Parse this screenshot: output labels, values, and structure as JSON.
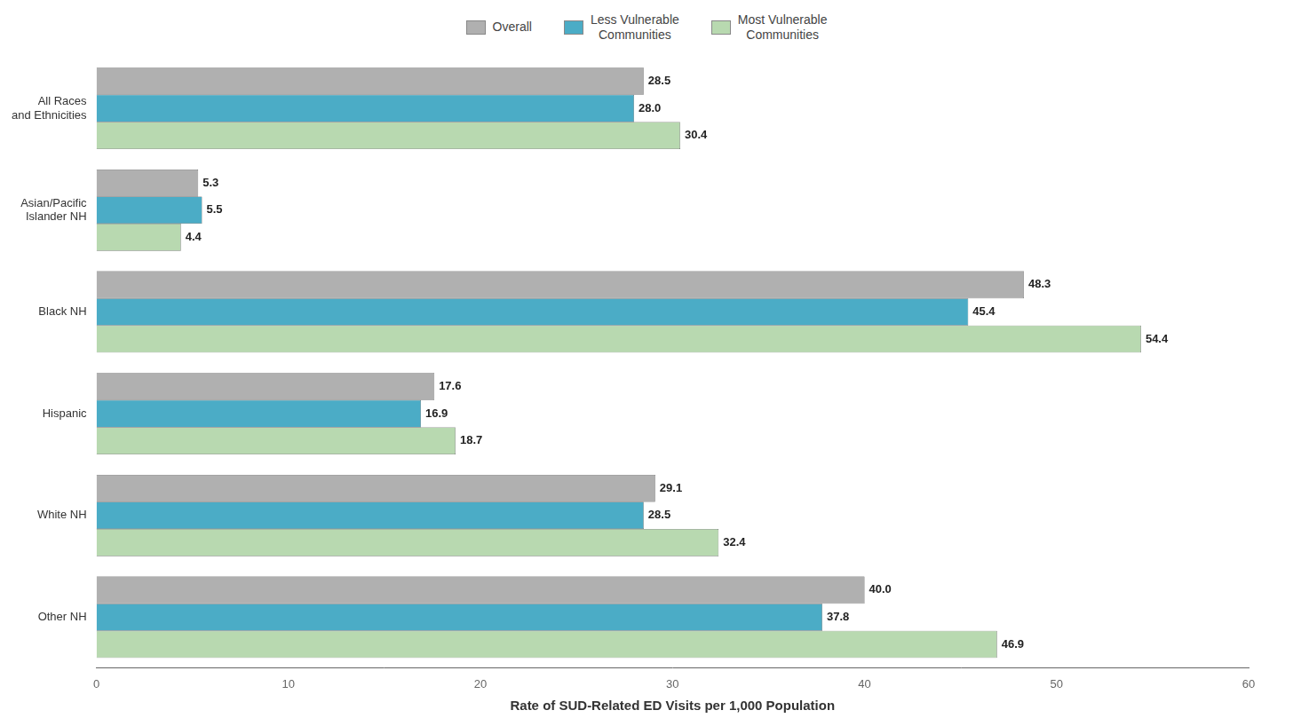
{
  "chart_data": {
    "type": "bar",
    "orientation": "horizontal",
    "categories": [
      "All Races\nand Ethnicities",
      "Asian/Pacific\nIslander NH",
      "Black NH",
      "Hispanic",
      "White NH",
      "Other NH"
    ],
    "series": [
      {
        "name": "Overall",
        "color": "#b0b0b0",
        "values": [
          28.5,
          5.3,
          48.3,
          17.6,
          29.1,
          40.0
        ],
        "value_labels": [
          "28.5",
          "5.3",
          "48.3",
          "17.6",
          "29.1",
          "40.0"
        ]
      },
      {
        "name": "Less Vulnerable\nCommunities",
        "color": "#4bacc6",
        "values": [
          28.0,
          5.5,
          45.4,
          16.9,
          28.5,
          37.8
        ],
        "value_labels": [
          "28.0",
          "5.5",
          "45.4",
          "16.9",
          "28.5",
          "37.8"
        ]
      },
      {
        "name": "Most Vulnerable\nCommunities",
        "color": "#b8d9b0",
        "values": [
          30.4,
          4.4,
          54.4,
          18.7,
          32.4,
          46.9
        ],
        "value_labels": [
          "30.4",
          "4.4",
          "54.4",
          "18.7",
          "32.4",
          "46.9"
        ]
      }
    ],
    "xlabel": "Rate of SUD-Related ED Visits per 1,000 Population",
    "xlim": [
      0,
      60
    ],
    "xticks": [
      0,
      10,
      20,
      30,
      40,
      50,
      60
    ],
    "data_labels": true,
    "legend": "top",
    "grid": false
  }
}
